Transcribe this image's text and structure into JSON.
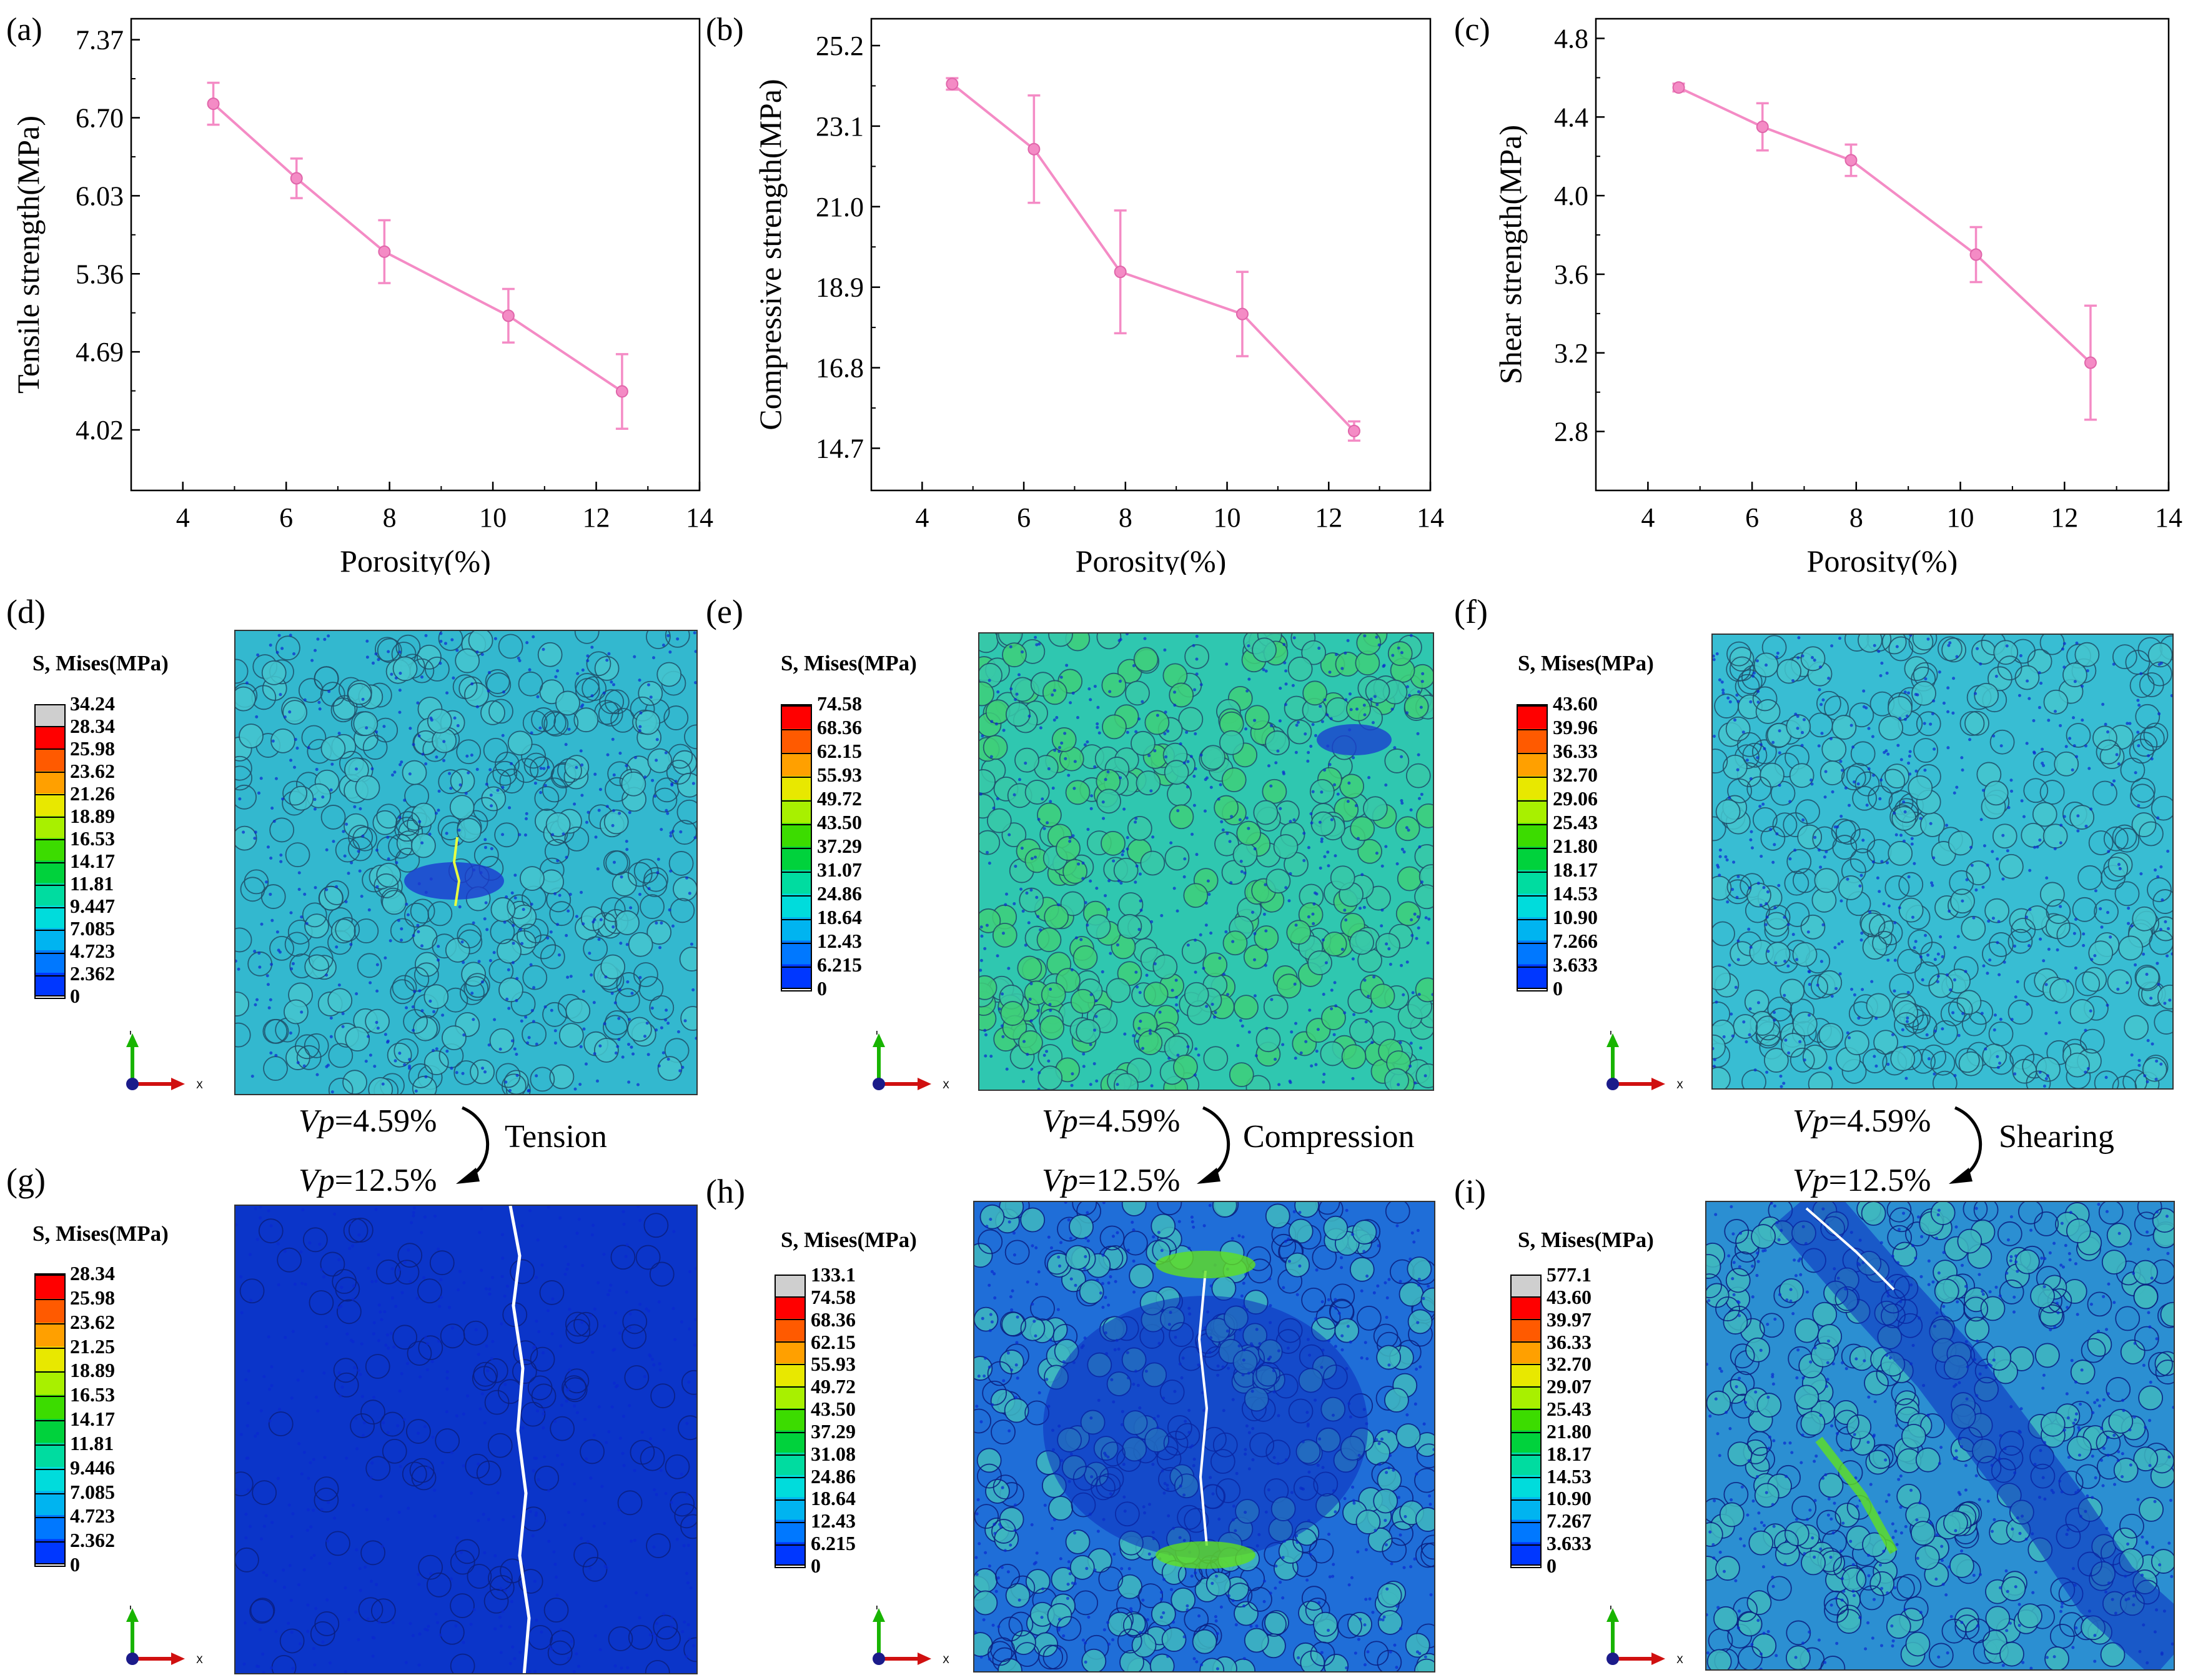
{
  "chart_data": [
    {
      "type": "line",
      "panel": "(a)",
      "xlabel": "Porosity(%)",
      "ylabel": "Tensile strength(MPa)",
      "x": [
        4.59,
        6.2,
        7.9,
        10.3,
        12.5
      ],
      "values": [
        6.82,
        6.18,
        5.55,
        5.0,
        4.35
      ],
      "errors": [
        0.18,
        0.17,
        0.27,
        0.23,
        0.32
      ],
      "xlim": [
        3,
        14
      ],
      "ylim": [
        3.5,
        7.55
      ],
      "xticks": [
        "4",
        "6",
        "8",
        "10",
        "12",
        "14"
      ],
      "yticks": [
        "4.02",
        "4.69",
        "5.36",
        "6.03",
        "6.70",
        "7.37"
      ],
      "color": "#f48bc5"
    },
    {
      "type": "line",
      "panel": "(b)",
      "xlabel": "Porosity(%)",
      "ylabel": "Compressive strength(MPa)",
      "x": [
        4.59,
        6.2,
        7.9,
        10.3,
        12.5
      ],
      "values": [
        24.2,
        22.5,
        19.3,
        18.2,
        15.15
      ],
      "errors": [
        0.15,
        1.4,
        1.6,
        1.1,
        0.25
      ],
      "xlim": [
        3,
        14
      ],
      "ylim": [
        13.6,
        25.9
      ],
      "xticks": [
        "4",
        "6",
        "8",
        "10",
        "12",
        "14"
      ],
      "yticks": [
        "14.7",
        "16.8",
        "18.9",
        "21.0",
        "23.1",
        "25.2"
      ],
      "color": "#f48bc5"
    },
    {
      "type": "line",
      "panel": "(c)",
      "xlabel": "Porosity(%)",
      "ylabel": "Shear strength(MPa)",
      "x": [
        4.59,
        6.2,
        7.9,
        10.3,
        12.5
      ],
      "values": [
        4.55,
        4.35,
        4.18,
        3.7,
        3.15
      ],
      "errors": [
        0.02,
        0.12,
        0.08,
        0.14,
        0.29
      ],
      "xlim": [
        3,
        14
      ],
      "ylim": [
        2.5,
        4.9
      ],
      "xticks": [
        "4",
        "6",
        "8",
        "10",
        "12",
        "14"
      ],
      "yticks": [
        "2.8",
        "3.2",
        "3.6",
        "4.0",
        "4.4",
        "4.8"
      ],
      "color": "#f48bc5"
    }
  ],
  "panels": {
    "a": "(a)",
    "b": "(b)",
    "c": "(c)",
    "d": "(d)",
    "e": "(e)",
    "f": "(f)",
    "g": "(g)",
    "h": "(h)",
    "i": "(i)"
  },
  "legend_title": "S, Mises(MPa)",
  "contour_legends": {
    "d": {
      "cap": "34.24",
      "values": [
        "34.24",
        "28.34",
        "25.98",
        "23.62",
        "21.26",
        "18.89",
        "16.53",
        "14.17",
        "11.81",
        "9.447",
        "7.085",
        "4.723",
        "2.362",
        "0"
      ]
    },
    "e": {
      "cap": null,
      "values": [
        "74.58",
        "68.36",
        "62.15",
        "55.93",
        "49.72",
        "43.50",
        "37.29",
        "31.07",
        "24.86",
        "18.64",
        "12.43",
        "6.215",
        "0"
      ]
    },
    "f": {
      "cap": null,
      "values": [
        "43.60",
        "39.96",
        "36.33",
        "32.70",
        "29.06",
        "25.43",
        "21.80",
        "18.17",
        "14.53",
        "10.90",
        "7.266",
        "3.633",
        "0"
      ]
    },
    "g": {
      "cap": null,
      "values": [
        "28.34",
        "25.98",
        "23.62",
        "21.25",
        "18.89",
        "16.53",
        "14.17",
        "11.81",
        "9.446",
        "7.085",
        "4.723",
        "2.362",
        "0"
      ]
    },
    "h": {
      "cap": "133.1",
      "values": [
        "133.1",
        "74.58",
        "68.36",
        "62.15",
        "55.93",
        "49.72",
        "43.50",
        "37.29",
        "31.08",
        "24.86",
        "18.64",
        "12.43",
        "6.215",
        "0"
      ]
    },
    "i": {
      "cap": "577.1",
      "values": [
        "577.1",
        "43.60",
        "39.97",
        "36.33",
        "32.70",
        "29.07",
        "25.43",
        "21.80",
        "18.17",
        "14.53",
        "10.90",
        "7.267",
        "3.633",
        "0"
      ]
    }
  },
  "colorbar_colors": [
    "#ff0000",
    "#ff5a00",
    "#ffa000",
    "#e8e800",
    "#a8f000",
    "#3cdc00",
    "#00d23c",
    "#00dca0",
    "#00dcdc",
    "#00b4f0",
    "#0078ff",
    "#0037ff"
  ],
  "axis_triad": {
    "y": "Y",
    "x": "X"
  },
  "transitions": [
    {
      "vp_from_prefix": "Vp",
      "vp_from_value": "=4.59%",
      "vp_to_prefix": "Vp",
      "vp_to_value": "=12.5%",
      "label": "Tension"
    },
    {
      "vp_from_prefix": "Vp",
      "vp_from_value": "=4.59%",
      "vp_to_prefix": "Vp",
      "vp_to_value": "=12.5%",
      "label": "Compression"
    },
    {
      "vp_from_prefix": "Vp",
      "vp_from_value": "=4.59%",
      "vp_to_prefix": "Vp",
      "vp_to_value": "=12.5%",
      "label": "Shearing"
    }
  ],
  "contour_bg": {
    "d": "#33b8cf",
    "e": "#2fc7b0",
    "f": "#38bdd3",
    "g": "#0b35c9",
    "h": "#1f6ed8",
    "i": "#2b8fd2"
  }
}
